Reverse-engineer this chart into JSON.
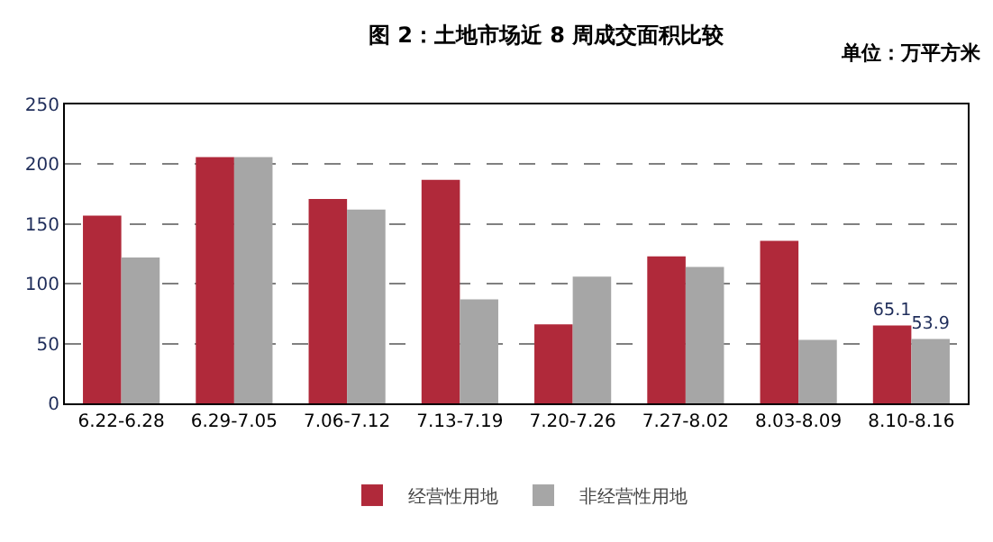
{
  "chart_data": {
    "type": "bar",
    "title": "图 2：土地市场近 8 周成交面积比较",
    "annotations": [
      "单位：万平方米"
    ],
    "categories": [
      "6.22-6.28",
      "6.29-7.05",
      "7.06-7.12",
      "7.13-7.19",
      "7.20-7.26",
      "7.27-8.02",
      "8.03-8.09",
      "8.10-8.16"
    ],
    "series": [
      {
        "name": "经营性用地",
        "color": "#b0293a",
        "values": [
          157,
          206,
          171,
          187,
          66,
          123,
          136,
          65.1
        ],
        "value_labels": [
          null,
          null,
          null,
          null,
          null,
          null,
          null,
          "65.1"
        ]
      },
      {
        "name": "非经营性用地",
        "color": "#a6a6a6",
        "values": [
          122,
          206,
          162,
          87,
          106,
          114,
          53,
          53.9
        ],
        "value_labels": [
          null,
          null,
          null,
          null,
          null,
          null,
          null,
          "53.9"
        ]
      }
    ],
    "ylim": [
      0,
      250
    ],
    "yticks": [
      0,
      50,
      100,
      150,
      200,
      250
    ],
    "grid": "y",
    "legend": "bottom"
  }
}
